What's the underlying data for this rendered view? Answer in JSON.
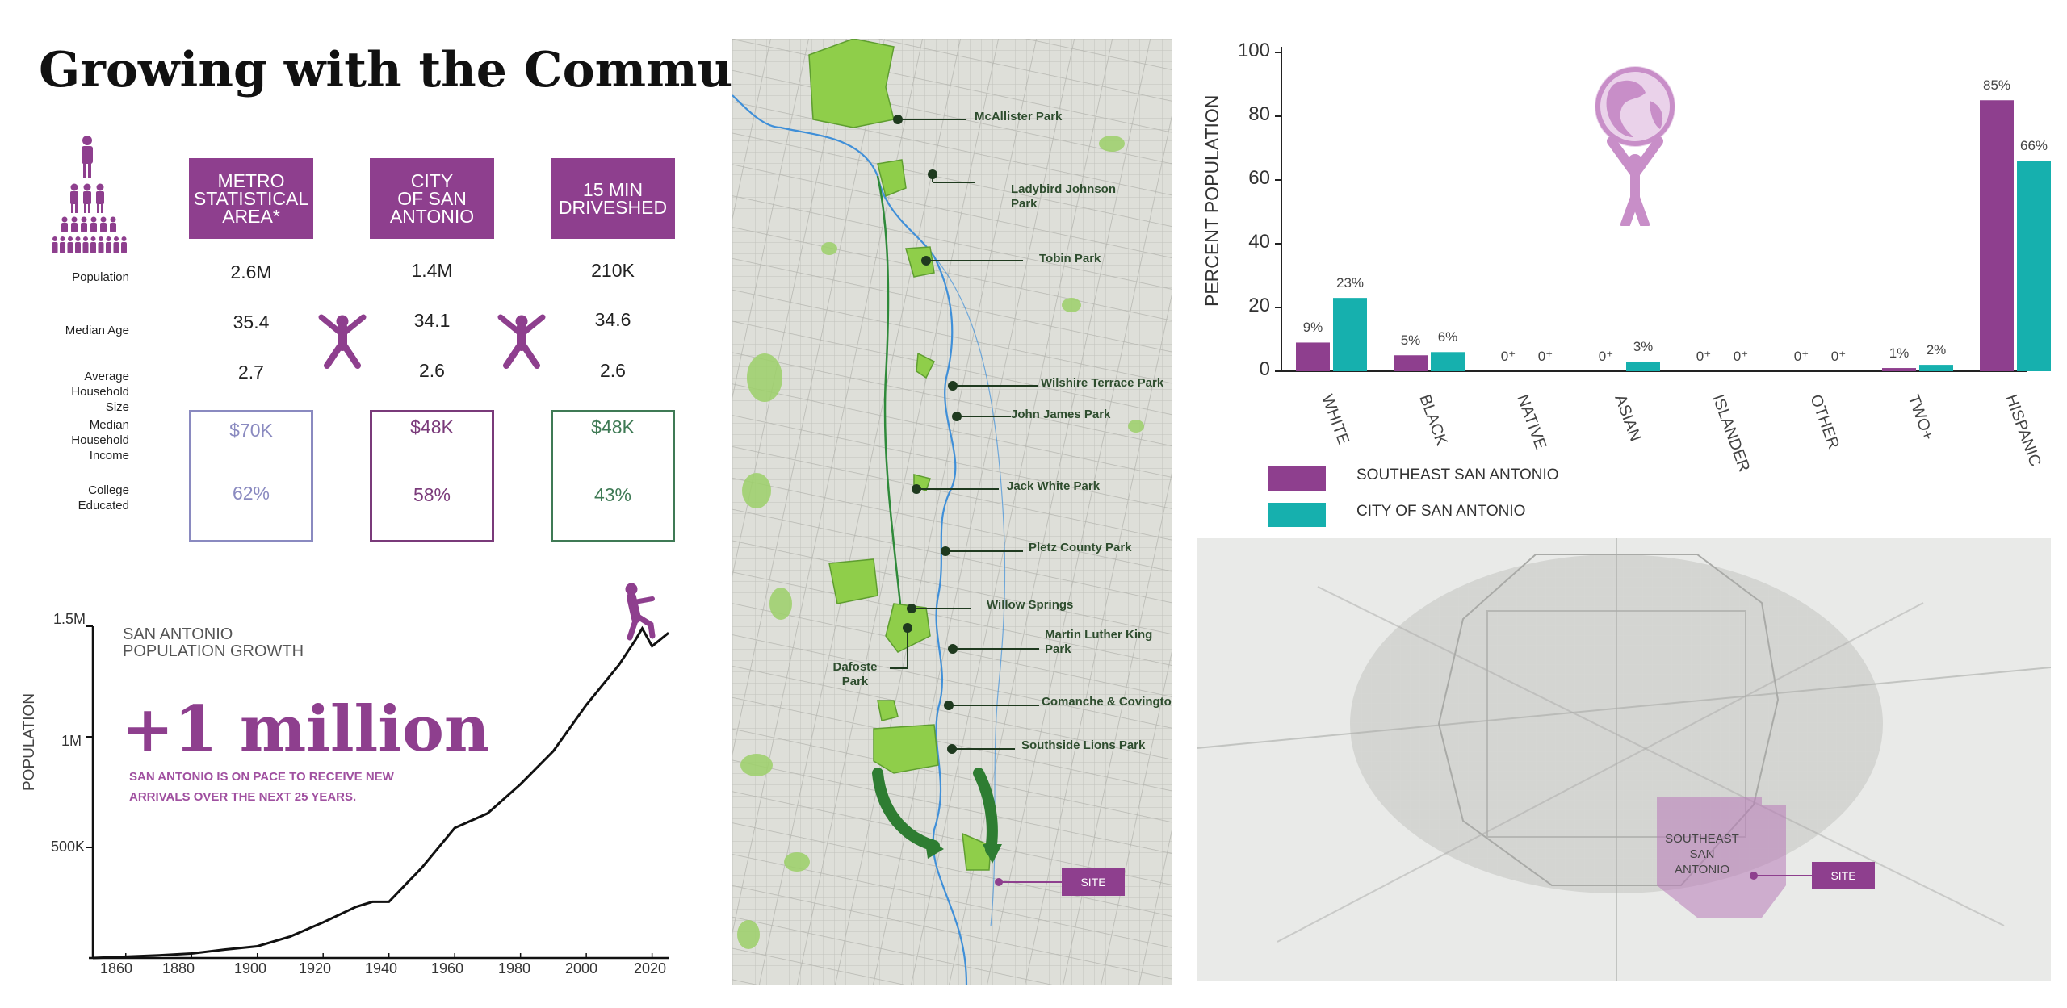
{
  "title": "Growing with the Community",
  "comparison": {
    "columns": [
      {
        "head": [
          "METRO",
          "STATISTICAL",
          "AREA*"
        ],
        "population": "2.6M",
        "median_age": "35.4",
        "household_size": "2.7",
        "income": "$70K",
        "college": "62%",
        "color": "#8a8ac0"
      },
      {
        "head": [
          "CITY",
          "OF SAN",
          "ANTONIO"
        ],
        "population": "1.4M",
        "median_age": "34.1",
        "household_size": "2.6",
        "income": "$48K",
        "college": "58%",
        "color": "#7a3a7a"
      },
      {
        "head": [
          "15 MIN",
          "DRIVESHED"
        ],
        "population": "210K",
        "median_age": "34.6",
        "household_size": "2.6",
        "income": "$48K",
        "college": "43%",
        "color": "#3f7a55"
      }
    ],
    "row_labels": {
      "population": "Population",
      "median_age": "Median Age",
      "household_size": [
        "Average Household",
        "Size"
      ],
      "income": [
        "Median Household",
        "Income"
      ],
      "college": [
        "College",
        "Educated"
      ]
    },
    "header_color": "#8e3f8e"
  },
  "growth": {
    "title_lines": [
      "SAN ANTONIO",
      "POPULATION GROWTH"
    ],
    "headline": "+1 million",
    "subtext": [
      "SAN ANTONIO IS ON PACE TO RECEIVE NEW",
      "ARRIVALS OVER THE NEXT 25 YEARS."
    ],
    "ylabel": "POPULATION",
    "y_ticks": [
      "1.5M",
      "1M",
      "500K"
    ],
    "x_ticks": [
      "1860",
      "1880",
      "1900",
      "1920",
      "1940",
      "1960",
      "1980",
      "2000",
      "2020"
    ]
  },
  "chart_data": [
    {
      "type": "line",
      "title": "SAN ANTONIO POPULATION GROWTH",
      "xlabel": "",
      "ylabel": "POPULATION",
      "xlim": [
        1850,
        2025
      ],
      "ylim": [
        0,
        1500000
      ],
      "x": [
        1850,
        1870,
        1880,
        1890,
        1900,
        1910,
        1920,
        1930,
        1935,
        1940,
        1950,
        1960,
        1970,
        1980,
        1990,
        2000,
        2010,
        2015,
        2017,
        2020,
        2025
      ],
      "y": [
        0,
        12000,
        20000,
        38000,
        53000,
        97000,
        161000,
        231000,
        254000,
        254000,
        408000,
        588000,
        654000,
        786000,
        936000,
        1144000,
        1327000,
        1440000,
        1490000,
        1410000,
        1470000
      ]
    },
    {
      "type": "bar",
      "title": "",
      "ylabel": "PERCENT POPULATION",
      "ylim": [
        0,
        100
      ],
      "y_ticks": [
        "100",
        "80",
        "60",
        "40",
        "20",
        "0"
      ],
      "categories": [
        "WHITE",
        "BLACK",
        "NATIVE",
        "ASIAN",
        "ISLANDER",
        "OTHER",
        "TWO+",
        "HISPANIC"
      ],
      "series": [
        {
          "name": "SOUTHEAST SAN ANTONIO",
          "color": "#8e3f8e",
          "values": [
            9,
            5,
            0,
            0,
            0,
            0,
            1,
            85
          ],
          "labels": [
            "9%",
            "5%",
            "0⁺",
            "0⁺",
            "0⁺",
            "0⁺",
            "1%",
            "85%"
          ]
        },
        {
          "name": "CITY OF SAN ANTONIO",
          "color": "#16b0ae",
          "values": [
            23,
            6,
            0,
            3,
            0,
            0,
            2,
            66
          ],
          "labels": [
            "23%",
            "6%",
            "0⁺",
            "3%",
            "0⁺",
            "0⁺",
            "2%",
            "66%"
          ]
        }
      ]
    }
  ],
  "parks": [
    "McAllister Park",
    "Ladybird Johnson Park",
    "Tobin Park",
    "Wilshire Terrace Park",
    "John James Park",
    "Jack White Park",
    "Pletz County Park",
    "Willow Springs",
    "Martin Luther King Park",
    "Dafoste Park",
    "Comanche & Covington Park",
    "Southside Lions Park"
  ],
  "site_label": "SITE",
  "region_label": [
    "SOUTHEAST SAN",
    "ANTONIO"
  ],
  "icons": [
    "people-pyramid-icon",
    "jumping-person-icon",
    "climbing-person-icon",
    "globe-atlas-icon"
  ]
}
